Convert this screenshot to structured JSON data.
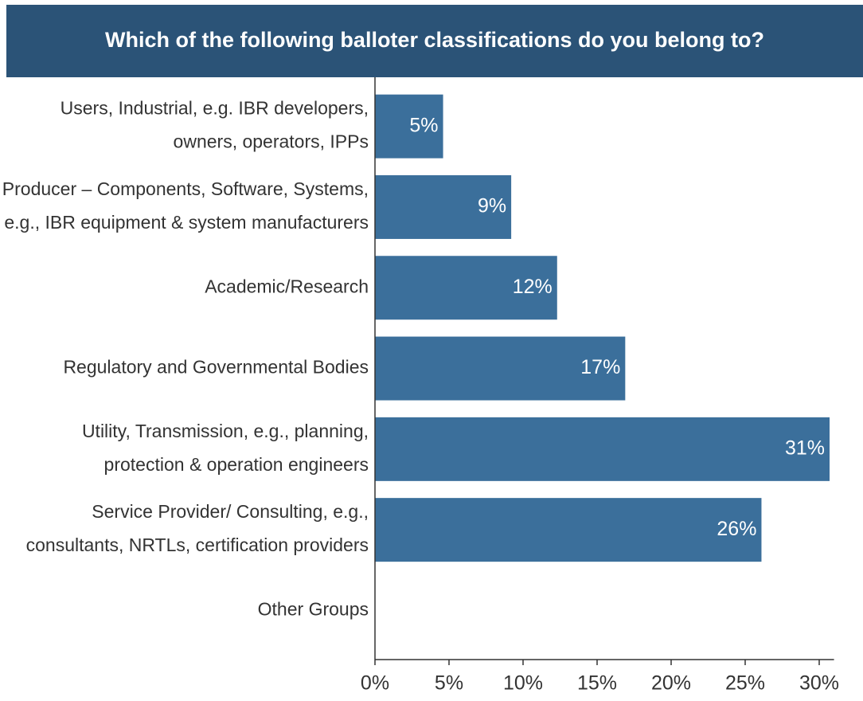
{
  "chart_data": {
    "type": "bar",
    "orientation": "horizontal",
    "title": "Which of the following balloter classifications do you belong to?",
    "categories": [
      [
        "Users, Industrial, e.g. IBR developers,",
        "owners, operators, IPPs"
      ],
      [
        "Producer – Components, Software, Systems,",
        "e.g., IBR equipment & system manufacturers"
      ],
      [
        "Academic/Research"
      ],
      [
        "Regulatory and Governmental Bodies"
      ],
      [
        "Utility, Transmission, e.g., planning,",
        "protection & operation engineers"
      ],
      [
        "Service Provider/ Consulting, e.g.,",
        "consultants, NRTLs, certification providers"
      ],
      [
        "Other Groups"
      ]
    ],
    "values": [
      4.6,
      9.2,
      12.3,
      16.9,
      30.7,
      26.1,
      0
    ],
    "value_labels": [
      "5%",
      "9%",
      "12%",
      "17%",
      "31%",
      "26%",
      null
    ],
    "color": "#3b6f9b",
    "title_background": "#2b5377",
    "xlim": [
      0,
      31
    ],
    "xticks": [
      {
        "value": 0,
        "label": "0%"
      },
      {
        "value": 5,
        "label": "5%"
      },
      {
        "value": 10,
        "label": "10%"
      },
      {
        "value": 15,
        "label": "15%"
      },
      {
        "value": 20,
        "label": "20%"
      },
      {
        "value": 25,
        "label": "25%"
      },
      {
        "value": 30,
        "label": "30%"
      }
    ],
    "grid": false
  }
}
